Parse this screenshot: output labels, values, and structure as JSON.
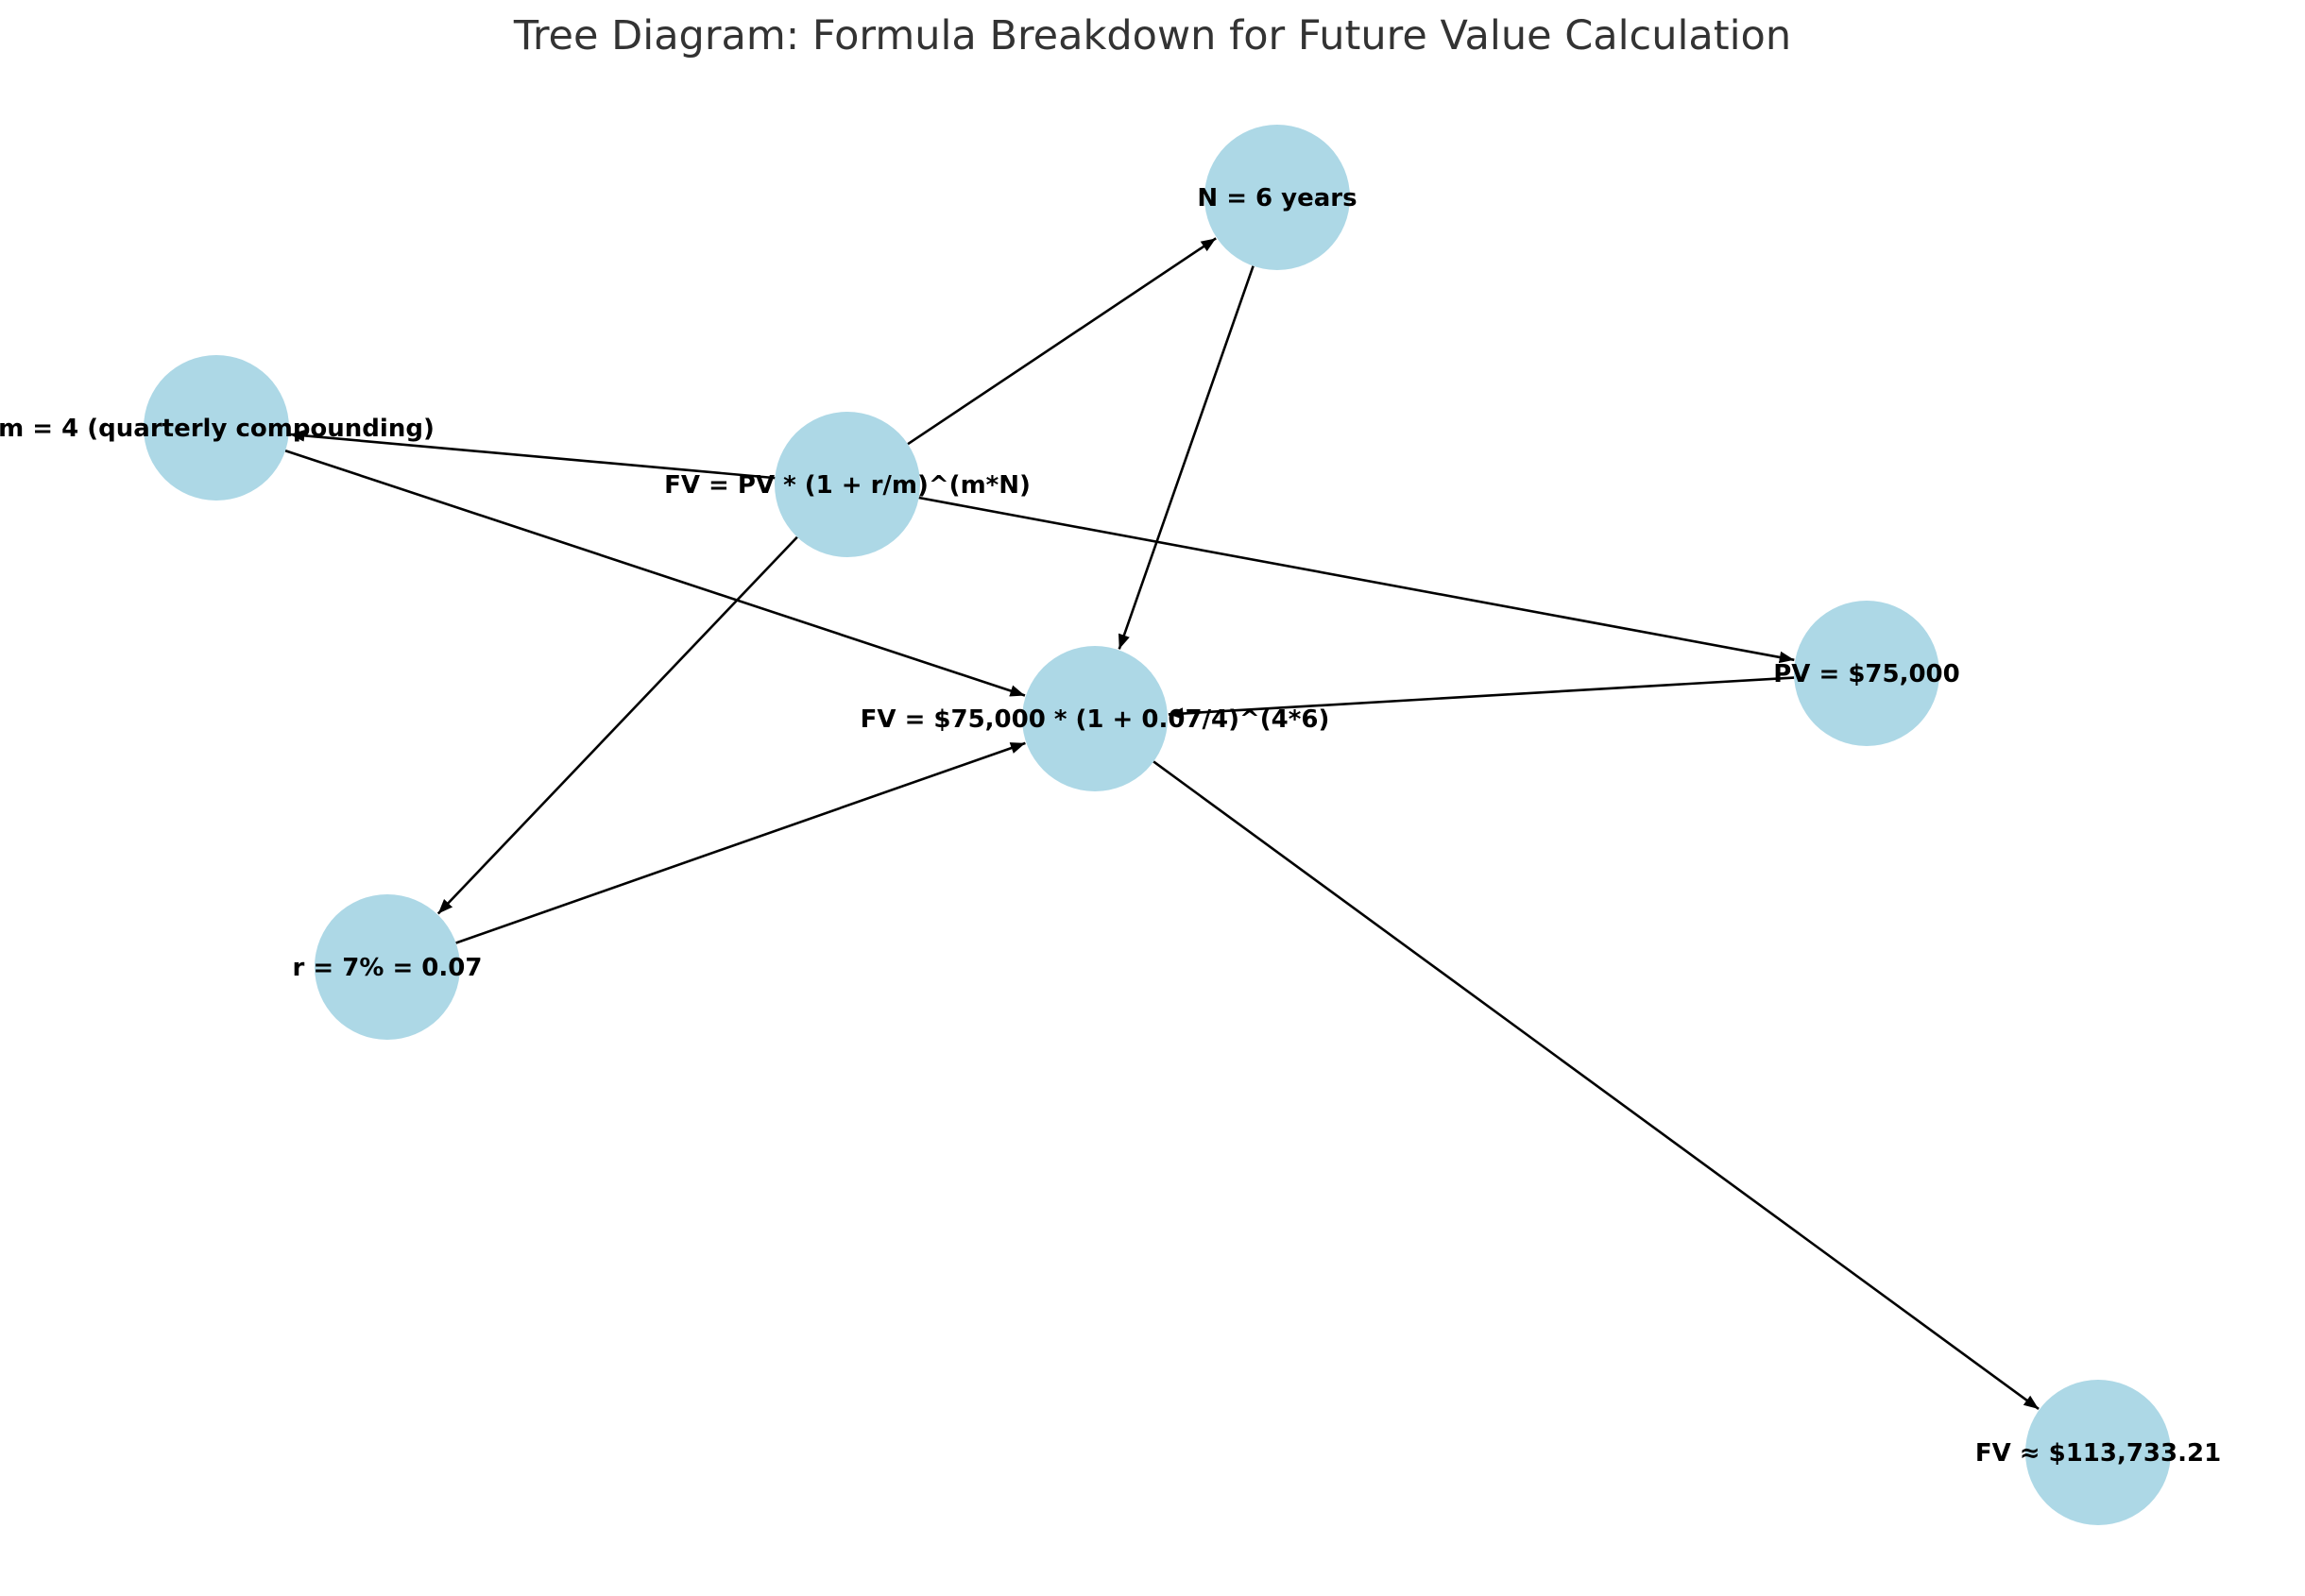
{
  "title": "Tree Diagram: Formula Breakdown for Future Value Calculation",
  "style": {
    "node_fill": "#add8e6",
    "edge_color": "#000000",
    "label_color": "#000000",
    "title_color": "#333333",
    "background": "#ffffff"
  },
  "nodes": [
    {
      "id": "formula",
      "label": "FV = PV * (1 + r/m)^(m*N)"
    },
    {
      "id": "pv",
      "label": "PV = $75,000"
    },
    {
      "id": "r",
      "label": "r = 7% = 0.07"
    },
    {
      "id": "m",
      "label": "m = 4 (quarterly compounding)"
    },
    {
      "id": "n",
      "label": "N = 6 years"
    },
    {
      "id": "substituted",
      "label": "FV = $75,000 * (1 + 0.07/4)^(4*6)"
    },
    {
      "id": "result",
      "label": "FV ≈ $113,733.21"
    }
  ],
  "edges": [
    {
      "from": "formula",
      "to": "pv"
    },
    {
      "from": "formula",
      "to": "r"
    },
    {
      "from": "formula",
      "to": "m"
    },
    {
      "from": "formula",
      "to": "n"
    },
    {
      "from": "pv",
      "to": "substituted"
    },
    {
      "from": "r",
      "to": "substituted"
    },
    {
      "from": "m",
      "to": "substituted"
    },
    {
      "from": "n",
      "to": "substituted"
    },
    {
      "from": "substituted",
      "to": "result"
    }
  ]
}
